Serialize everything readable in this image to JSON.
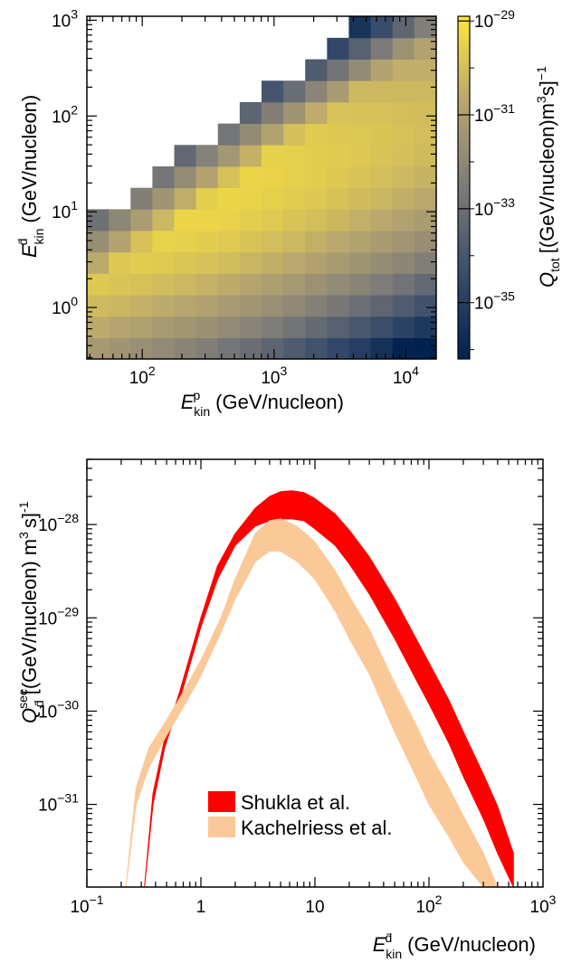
{
  "chart_data": [
    {
      "type": "heatmap",
      "xlabel": {
        "symbol": "E",
        "sub": "kin",
        "sup": "p",
        "unit": "(GeV/nucleon)"
      },
      "ylabel": {
        "symbol": "E",
        "sub": "kin",
        "sup": "d̄",
        "unit": "(GeV/nucleon)"
      },
      "colorbar_label": {
        "symbol": "Q",
        "sub": "tot",
        "unit": "[(GeV/nucleon)m",
        "unit_sup1": "3",
        "unit_mid": "s]",
        "unit_sup2": "−1"
      },
      "xscale": "log",
      "yscale": "log",
      "xlim": [
        38,
        17000
      ],
      "ylim": [
        0.29,
        1100
      ],
      "clim_log10": [
        -36.2,
        -28.9
      ],
      "x_ticks": [
        {
          "value": 100,
          "base": "10",
          "exp": "2"
        },
        {
          "value": 1000,
          "base": "10",
          "exp": "3"
        },
        {
          "value": 10000,
          "base": "10",
          "exp": "4"
        }
      ],
      "y_ticks": [
        {
          "value": 1,
          "base": "10",
          "exp": "0"
        },
        {
          "value": 10,
          "base": "10",
          "exp": "1"
        },
        {
          "value": 100,
          "base": "10",
          "exp": "2"
        },
        {
          "value": 1000,
          "base": "10",
          "exp": "3"
        }
      ],
      "colorbar_ticks": [
        {
          "value": -29,
          "base": "10",
          "exp": "−29"
        },
        {
          "value": -31,
          "base": "10",
          "exp": "−31"
        },
        {
          "value": -33,
          "base": "10",
          "exp": "−33"
        },
        {
          "value": -35,
          "base": "10",
          "exp": "−35"
        }
      ],
      "colormap": [
        "#00224e",
        "#3a4d6b",
        "#7c7b78",
        "#b8a66f",
        "#fee838"
      ],
      "grid": {
        "nx": 16,
        "ny": 16,
        "x_log10_range": [
          1.58,
          4.23
        ],
        "y_log10_range": [
          -0.54,
          3.04
        ]
      },
      "cells_log10_Q": [
        [
          null,
          null,
          null,
          null,
          null,
          null,
          null,
          null,
          null,
          null,
          null,
          null,
          null,
          null,
          null,
          null
        ],
        [
          null,
          null,
          null,
          null,
          null,
          null,
          null,
          null,
          null,
          null,
          null,
          null,
          null,
          null,
          null,
          null
        ],
        [
          null,
          null,
          null,
          null,
          null,
          null,
          null,
          null,
          null,
          null,
          null,
          null,
          null,
          null,
          null,
          null
        ],
        [
          null,
          null,
          null,
          null,
          null,
          null,
          null,
          null,
          null,
          null,
          null,
          null,
          null,
          null,
          null,
          null
        ],
        [
          null,
          null,
          null,
          null,
          null,
          null,
          null,
          null,
          null,
          null,
          null,
          null,
          null,
          null,
          null,
          null
        ],
        [
          null,
          null,
          null,
          null,
          null,
          null,
          null,
          null,
          null,
          null,
          null,
          null,
          null,
          null,
          null,
          null
        ],
        [
          null,
          null,
          null,
          null,
          null,
          null,
          null,
          null,
          null,
          null,
          null,
          null,
          null,
          null,
          null,
          null
        ],
        [
          null,
          null,
          null,
          null,
          null,
          null,
          null,
          null,
          null,
          null,
          null,
          null,
          null,
          null,
          null,
          null
        ],
        [
          null,
          null,
          null,
          null,
          null,
          null,
          null,
          null,
          null,
          null,
          null,
          null,
          null,
          null,
          null,
          null
        ],
        [
          null,
          null,
          null,
          null,
          null,
          null,
          null,
          null,
          null,
          null,
          null,
          null,
          null,
          null,
          null,
          null
        ],
        [
          null,
          null,
          null,
          null,
          null,
          null,
          null,
          null,
          null,
          null,
          null,
          null,
          null,
          null,
          null,
          null
        ],
        [
          null,
          null,
          null,
          null,
          null,
          null,
          null,
          null,
          null,
          null,
          null,
          null,
          null,
          null,
          null,
          null
        ],
        [
          null,
          null,
          null,
          null,
          null,
          null,
          null,
          null,
          null,
          null,
          null,
          null,
          null,
          null,
          null,
          null
        ],
        [
          null,
          null,
          null,
          null,
          null,
          null,
          null,
          null,
          null,
          null,
          null,
          null,
          null,
          null,
          null,
          null
        ],
        [
          null,
          null,
          null,
          null,
          null,
          null,
          null,
          null,
          null,
          null,
          null,
          null,
          null,
          null,
          null,
          null
        ],
        [
          null,
          null,
          null,
          null,
          null,
          null,
          null,
          null,
          null,
          null,
          null,
          null,
          null,
          null,
          null,
          null
        ]
      ],
      "cells_note": ""
    },
    {
      "type": "area",
      "xlabel": {
        "symbol": "E",
        "sub": "kin",
        "sup": "d̄",
        "unit": "(GeV/nucleon)"
      },
      "ylabel": {
        "symbol": "Q",
        "sub": "d̄",
        "sup": "sec",
        "unit": "[(GeV/nucleon) m",
        "unit_sup1": "3",
        "unit_mid": "s]",
        "unit_sup2": "-1"
      },
      "xscale": "log",
      "yscale": "log",
      "xlim": [
        0.1,
        1000
      ],
      "ylim": [
        1.3e-32,
        5e-28
      ],
      "x_ticks": [
        {
          "value": 0.1,
          "base": "10",
          "exp": "−1"
        },
        {
          "value": 1,
          "base": "1",
          "exp": ""
        },
        {
          "value": 10,
          "base": "10",
          "exp": ""
        },
        {
          "value": 100,
          "base": "10",
          "exp": "2"
        },
        {
          "value": 1000,
          "base": "10",
          "exp": "3"
        }
      ],
      "y_ticks": [
        {
          "value": 1e-28,
          "base": "10",
          "exp": "−28"
        },
        {
          "value": 1e-29,
          "base": "10",
          "exp": "−29"
        },
        {
          "value": 1e-30,
          "base": "10",
          "exp": "−30"
        },
        {
          "value": 1e-31,
          "base": "10",
          "exp": "−31"
        }
      ],
      "legend_placement": "lower-center",
      "series": [
        {
          "name": "Shukla et al.",
          "color": "#ff0000",
          "x": [
            0.32,
            0.38,
            0.48,
            0.65,
            1.0,
            1.4,
            2.0,
            3.0,
            4.0,
            5.0,
            6.3,
            8.0,
            10,
            15,
            20,
            30,
            50,
            80,
            100,
            150,
            200,
            300,
            400,
            550
          ],
          "low": [
            1.3e-32,
            1e-31,
            4e-31,
            1.3e-30,
            8e-30,
            2.6e-29,
            6e-29,
            9.6e-29,
            1.1e-28,
            1.15e-28,
            1.15e-28,
            1.1e-28,
            9e-29,
            6e-29,
            3.8e-29,
            1.8e-29,
            6e-30,
            2e-30,
            1.2e-30,
            4.5e-31,
            2e-31,
            7e-32,
            3e-32,
            1.3e-32
          ],
          "high": [
            1.3e-32,
            1.3e-31,
            5e-31,
            1.6e-30,
            1e-29,
            3.6e-29,
            8e-29,
            1.5e-28,
            2e-28,
            2.25e-28,
            2.3e-28,
            2.2e-28,
            1.9e-28,
            1.3e-28,
            8.7e-29,
            4.5e-29,
            1.6e-29,
            5.5e-30,
            3.3e-30,
            1.3e-30,
            6e-31,
            2.1e-31,
            9.5e-32,
            3e-32
          ]
        },
        {
          "name": "Kachelriess et al.",
          "color": "#fbc897",
          "x": [
            0.22,
            0.27,
            0.35,
            0.5,
            0.7,
            1.0,
            1.5,
            2.0,
            3.0,
            4.0,
            5.0,
            7.0,
            10,
            15,
            20,
            30,
            50,
            80,
            100,
            150,
            200,
            300,
            400
          ],
          "low": [
            1.3e-32,
            1e-31,
            2.5e-31,
            5.5e-31,
            1.1e-30,
            2.4e-30,
            7e-30,
            1.6e-29,
            4e-29,
            5.2e-29,
            5.2e-29,
            4e-29,
            2.6e-29,
            1.2e-29,
            6e-30,
            2.5e-30,
            6e-31,
            1.8e-31,
            1e-31,
            4.5e-32,
            2.4e-32,
            1.3e-32,
            1.3e-32
          ],
          "high": [
            1.3e-32,
            1.5e-31,
            4e-31,
            8e-31,
            1.6e-30,
            3.5e-30,
            1e-29,
            2.6e-29,
            8e-29,
            1.1e-28,
            1.15e-28,
            9.5e-29,
            6.5e-29,
            3.2e-29,
            1.7e-29,
            7.5e-30,
            2e-30,
            6.5e-31,
            3.6e-31,
            1.5e-31,
            7.5e-32,
            3e-32,
            1.3e-32
          ]
        }
      ]
    }
  ]
}
